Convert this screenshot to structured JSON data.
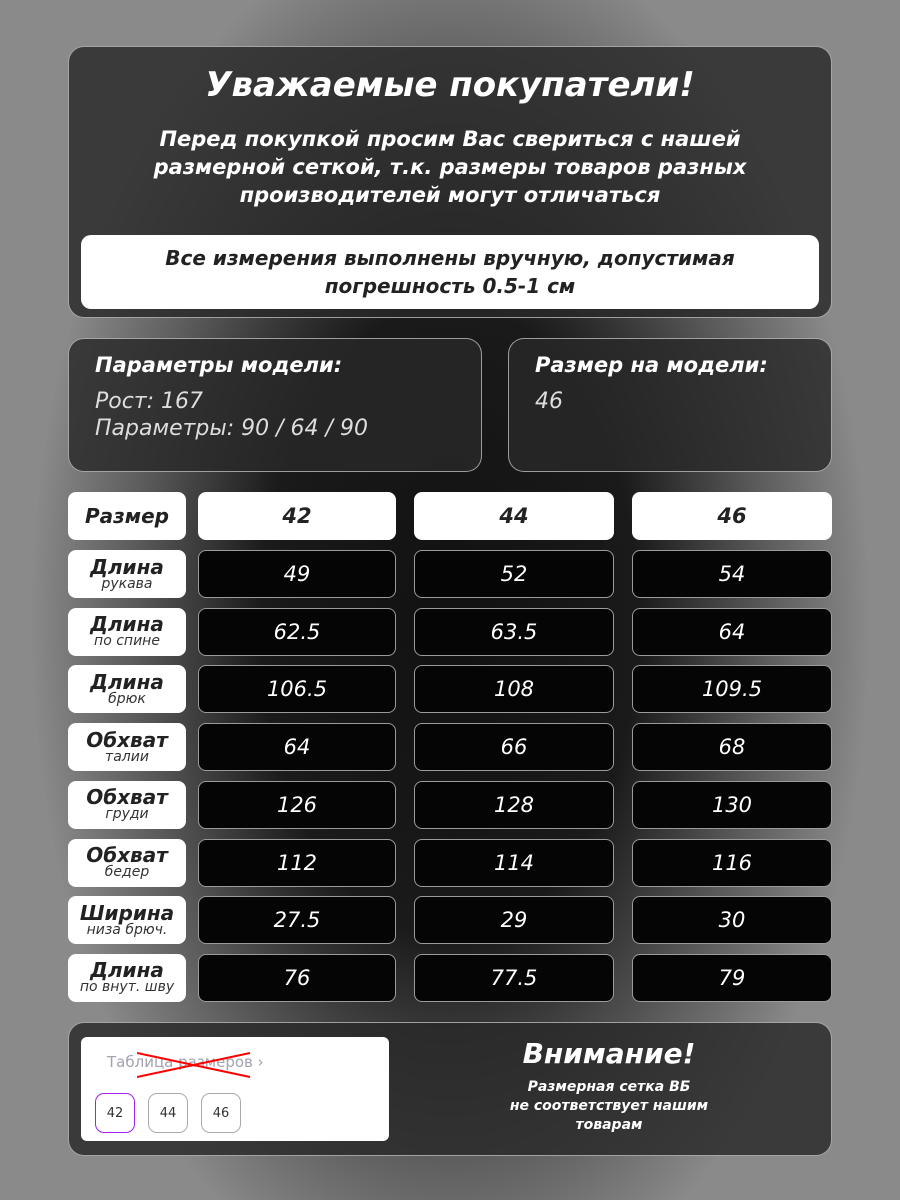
{
  "header": {
    "title": "Уважаемые покупатели!",
    "subtitle": "Перед покупкой просим Вас свериться с нашей размерной сеткой, т.к. размеры товаров разных производителей могут отличаться",
    "notice": "Все измерения выполнены вручную, допустимая погрешность 0.5-1 см"
  },
  "model_params": {
    "title": "Параметры модели:",
    "height": "Рост: 167",
    "measurements": "Параметры: 90 / 64 / 90"
  },
  "model_size": {
    "title": "Размер на модели:",
    "value": "46"
  },
  "table": {
    "header_label": "Размер",
    "sizes": [
      "42",
      "44",
      "46"
    ],
    "rows": [
      {
        "main": "Длина",
        "sub": "рукава",
        "values": [
          "49",
          "52",
          "54"
        ]
      },
      {
        "main": "Длина",
        "sub": "по спине",
        "values": [
          "62.5",
          "63.5",
          "64"
        ]
      },
      {
        "main": "Длина",
        "sub": "брюк",
        "values": [
          "106.5",
          "108",
          "109.5"
        ]
      },
      {
        "main": "Обхват",
        "sub": "талии",
        "values": [
          "64",
          "66",
          "68"
        ]
      },
      {
        "main": "Обхват",
        "sub": "груди",
        "values": [
          "126",
          "128",
          "130"
        ]
      },
      {
        "main": "Обхват",
        "sub": "бедер",
        "values": [
          "112",
          "114",
          "116"
        ]
      },
      {
        "main": "Ширина",
        "sub": "низа брюч.",
        "values": [
          "27.5",
          "29",
          "30"
        ]
      },
      {
        "main": "Длина",
        "sub": "по внут. шву",
        "values": [
          "76",
          "77.5",
          "79"
        ]
      }
    ]
  },
  "footer": {
    "wb_link": "Таблица размеров ›",
    "wb_sizes": [
      "42",
      "44",
      "46"
    ],
    "selected_color": "#a020f0",
    "cross_color": "#ff0000",
    "warning_title": "Внимание!",
    "warning_text": [
      "Размерная сетка ВБ",
      "не соответствует нашим",
      "товарам"
    ]
  }
}
